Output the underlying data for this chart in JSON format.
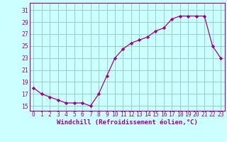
{
  "x": [
    0,
    1,
    2,
    3,
    4,
    5,
    6,
    7,
    8,
    9,
    10,
    11,
    12,
    13,
    14,
    15,
    16,
    17,
    18,
    19,
    20,
    21,
    22,
    23
  ],
  "y": [
    18,
    17,
    16.5,
    16,
    15.5,
    15.5,
    15.5,
    15,
    17,
    20,
    23,
    24.5,
    25.5,
    26,
    26.5,
    27.5,
    28,
    29.5,
    30,
    30,
    30,
    30,
    25,
    23
  ],
  "line_color": "#990099",
  "marker": "D",
  "marker_size": 2.2,
  "bg_color": "#ccffff",
  "grid_color": "#99cccc",
  "xlabel": "Windchill (Refroidissement éolien,°C)",
  "xlabel_fontsize": 6.5,
  "tick_fontsize": 5.8,
  "yticks": [
    15,
    17,
    19,
    21,
    23,
    25,
    27,
    29,
    31
  ],
  "ylim": [
    14.2,
    32.2
  ],
  "xlim": [
    -0.5,
    23.5
  ],
  "linewidth": 0.9
}
